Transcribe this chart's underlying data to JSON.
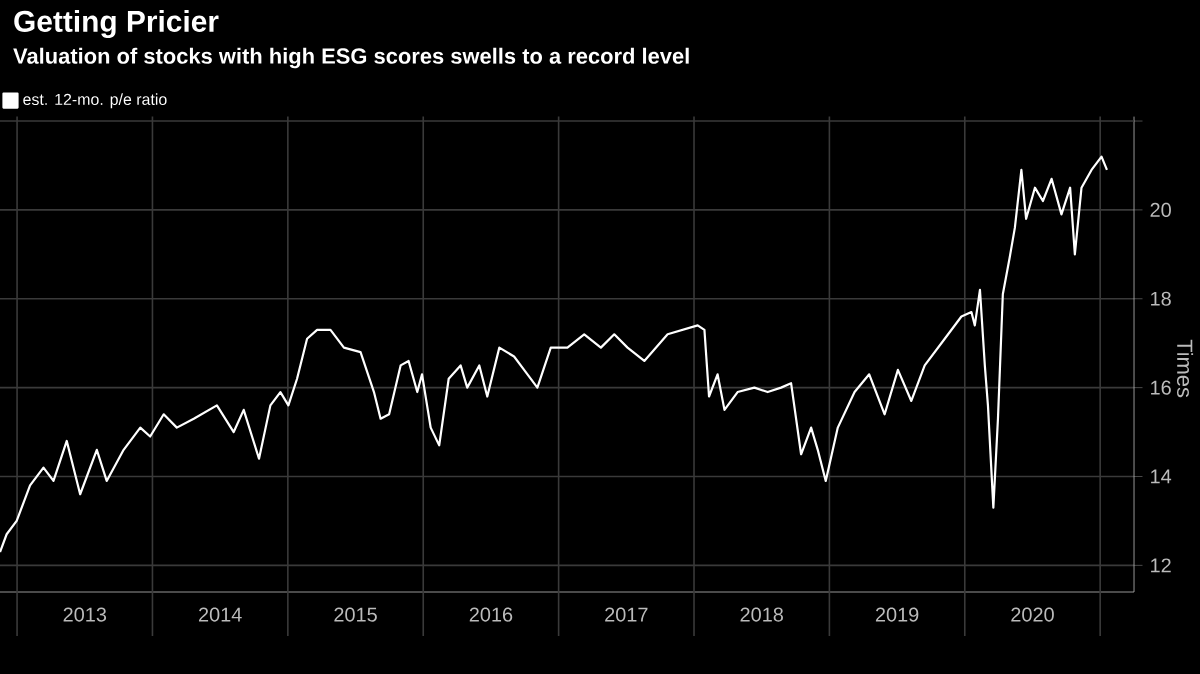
{
  "chart_data": {
    "type": "line",
    "title": "Getting Pricier",
    "subtitle": "Valuation of stocks with high ESG scores swells to a record level",
    "ylabel": "Times",
    "series": [
      {
        "name": "est. 12-mo. p/e ratio",
        "color": "#ffffff",
        "x": [
          2012.874,
          2012.923,
          2012.997,
          2013.096,
          2013.195,
          2013.269,
          2013.367,
          2013.466,
          2013.589,
          2013.662,
          2013.787,
          2013.91,
          2013.983,
          2014.083,
          2014.18,
          2014.305,
          2014.476,
          2014.6,
          2014.674,
          2014.787,
          2014.871,
          2014.945,
          2015.004,
          2015.068,
          2015.142,
          2015.216,
          2015.315,
          2015.414,
          2015.537,
          2015.636,
          2015.685,
          2015.748,
          2015.833,
          2015.892,
          2015.956,
          2015.991,
          2016.055,
          2016.118,
          2016.188,
          2016.276,
          2016.325,
          2016.414,
          2016.473,
          2016.562,
          2016.671,
          2016.745,
          2016.843,
          2016.942,
          2017.065,
          2017.189,
          2017.312,
          2017.411,
          2017.509,
          2017.633,
          2017.805,
          2018.027,
          2018.077,
          2018.111,
          2018.174,
          2018.225,
          2018.322,
          2018.446,
          2018.544,
          2018.643,
          2018.717,
          2018.791,
          2018.865,
          2018.914,
          2018.973,
          2019.062,
          2019.186,
          2019.294,
          2019.408,
          2019.506,
          2019.605,
          2019.704,
          2019.852,
          2019.975,
          2020.049,
          2020.074,
          2020.112,
          2020.148,
          2020.171,
          2020.211,
          2020.245,
          2020.281,
          2020.33,
          2020.37,
          2020.418,
          2020.453,
          2020.518,
          2020.577,
          2020.641,
          2020.714,
          2020.778,
          2020.813,
          2020.862,
          2020.936,
          2021.01,
          2021.05
        ],
        "values": [
          12.3,
          12.7,
          13.0,
          13.8,
          14.2,
          13.9,
          14.8,
          13.6,
          14.6,
          13.9,
          14.6,
          15.1,
          14.9,
          15.4,
          15.1,
          15.3,
          15.6,
          15.0,
          15.5,
          14.4,
          15.6,
          15.9,
          15.6,
          16.2,
          17.1,
          17.3,
          17.3,
          16.9,
          16.8,
          15.9,
          15.3,
          15.4,
          16.5,
          16.6,
          15.9,
          16.3,
          15.1,
          14.7,
          16.2,
          16.5,
          16.0,
          16.5,
          15.8,
          16.9,
          16.7,
          16.4,
          16.0,
          16.9,
          16.9,
          17.2,
          16.9,
          17.2,
          16.9,
          16.6,
          17.2,
          17.4,
          17.3,
          15.8,
          16.3,
          15.5,
          15.9,
          16.0,
          15.9,
          16.0,
          16.1,
          14.5,
          15.1,
          14.6,
          13.9,
          15.1,
          15.9,
          16.3,
          15.4,
          16.4,
          15.7,
          16.5,
          17.1,
          17.6,
          17.7,
          17.4,
          18.2,
          16.5,
          15.6,
          13.3,
          15.3,
          18.1,
          18.9,
          19.6,
          20.9,
          19.8,
          20.5,
          20.2,
          20.7,
          19.9,
          20.5,
          19.0,
          20.5,
          20.9,
          21.2,
          20.9
        ]
      }
    ],
    "xlim": [
      2012.874,
      2021.25
    ],
    "xticks": [
      {
        "value": 2013,
        "label": null
      },
      {
        "value": 2013.5,
        "label": "2013"
      },
      {
        "value": 2014,
        "label": null
      },
      {
        "value": 2014.5,
        "label": "2014"
      },
      {
        "value": 2015,
        "label": null
      },
      {
        "value": 2015.5,
        "label": "2015"
      },
      {
        "value": 2016,
        "label": null
      },
      {
        "value": 2016.5,
        "label": "2016"
      },
      {
        "value": 2017,
        "label": null
      },
      {
        "value": 2017.5,
        "label": "2017"
      },
      {
        "value": 2018,
        "label": null
      },
      {
        "value": 2018.5,
        "label": "2018"
      },
      {
        "value": 2019,
        "label": null
      },
      {
        "value": 2019.5,
        "label": "2019"
      },
      {
        "value": 2020,
        "label": null
      },
      {
        "value": 2020.5,
        "label": "2020"
      },
      {
        "value": 2021,
        "label": null
      }
    ],
    "ylim": [
      11.4,
      22.1
    ],
    "yticks": [
      12,
      14,
      16,
      18,
      20,
      {
        "value": 22,
        "label": null
      }
    ],
    "grid": true,
    "legend": "top left",
    "marker": "none"
  }
}
